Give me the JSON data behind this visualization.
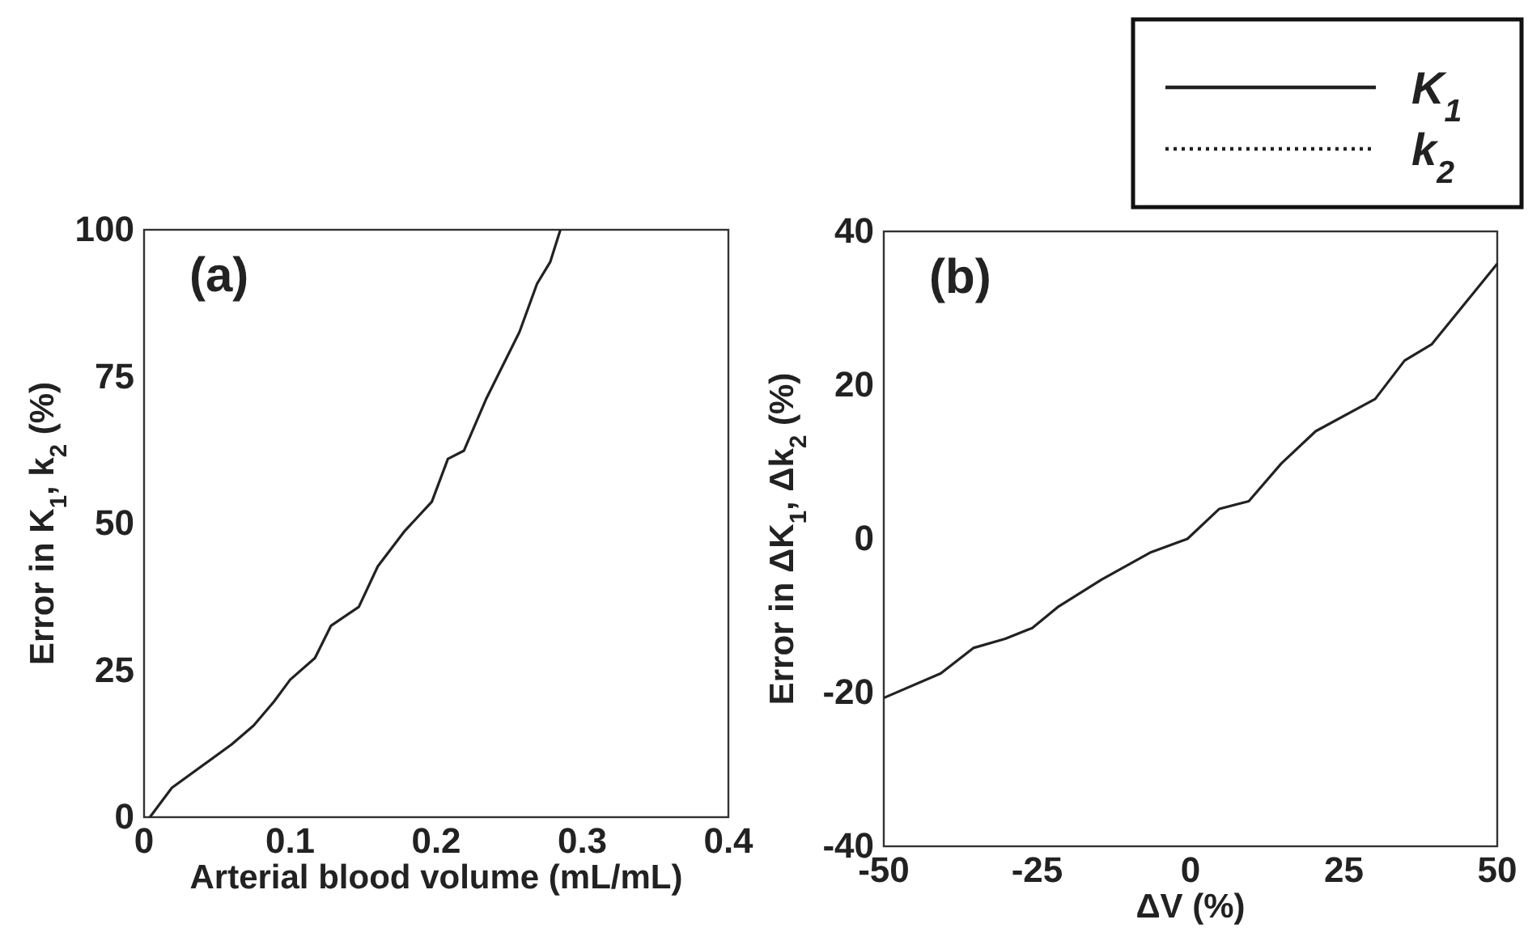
{
  "chart_data": [
    {
      "type": "line",
      "title": "(a)",
      "xlabel": "Arterial blood volume (mL/mL)",
      "ylabel": "Error in K$_{1}$, k$_{2}$ (%)",
      "xlim": [
        0,
        0.4
      ],
      "ylim": [
        0,
        100
      ],
      "xticks": [
        0,
        0.1,
        0.2,
        0.3,
        0.4
      ],
      "yticks": [
        0,
        25,
        50,
        75,
        100
      ],
      "legend": false,
      "series": [
        {
          "color": "#222222",
          "line_style": "solid",
          "x": [
            0.004,
            0.019,
            0.06,
            0.075,
            0.089,
            0.1,
            0.117,
            0.128,
            0.147,
            0.16,
            0.178,
            0.197,
            0.208,
            0.219,
            0.234,
            0.257,
            0.269,
            0.278,
            0.285
          ],
          "values": [
            0,
            5,
            12.4,
            15.6,
            19.7,
            23.4,
            27.1,
            32.6,
            35.8,
            42.7,
            48.6,
            53.7,
            61,
            62.4,
            71.1,
            82.6,
            90.8,
            94.5,
            100
          ]
        }
      ]
    },
    {
      "type": "line",
      "title": "(b)",
      "xlabel": "ΔV (%)",
      "ylabel": "Error in ΔK$_{1}$, Δk$_{2}$ (%)",
      "xlim": [
        -50,
        50
      ],
      "ylim": [
        -40,
        40
      ],
      "xticks": [
        -50,
        -25,
        0,
        25,
        50
      ],
      "yticks": [
        -40,
        -20,
        0,
        20,
        40
      ],
      "legend": "top right",
      "series": [
        {
          "name": "K$_{1}$",
          "color": "#222222",
          "line_style": "solid",
          "x": [
            -50,
            -40.7,
            -35.4,
            -30.2,
            -25.8,
            -21.5,
            -14.5,
            -6.6,
            -0.5,
            4.7,
            9.5,
            14.8,
            20.4,
            30.1,
            34.9,
            39.3,
            50
          ],
          "values": [
            -20.7,
            -17.5,
            -14.2,
            -13,
            -11.6,
            -8.8,
            -5.3,
            -1.8,
            0,
            3.9,
            4.9,
            9.8,
            14,
            18.2,
            23.2,
            25.3,
            35.8
          ]
        },
        {
          "name": "k$_{2}$",
          "color": "#222222",
          "line_style": "dotted"
        }
      ]
    }
  ]
}
